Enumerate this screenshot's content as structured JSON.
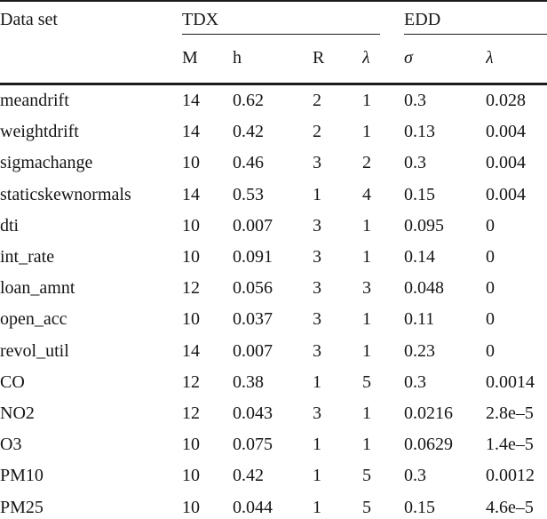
{
  "table": {
    "header": {
      "dataset_label": "Data set",
      "group_tdx": "TDX",
      "group_edd": "EDD",
      "sub_m": "M",
      "sub_h": "h",
      "sub_r": "R",
      "sub_lambda": "λ",
      "sub_sigma": "σ",
      "sub_lambda2": "λ"
    },
    "rows": [
      {
        "name": "meandrift",
        "m": "14",
        "h": "0.62",
        "r": "2",
        "lambda": "1",
        "sigma": "0.3",
        "lambda2": "0.028"
      },
      {
        "name": "weightdrift",
        "m": "14",
        "h": "0.42",
        "r": "2",
        "lambda": "1",
        "sigma": "0.13",
        "lambda2": "0.004"
      },
      {
        "name": "sigmachange",
        "m": "10",
        "h": "0.46",
        "r": "3",
        "lambda": "2",
        "sigma": "0.3",
        "lambda2": "0.004"
      },
      {
        "name": "staticskewnormals",
        "m": "14",
        "h": "0.53",
        "r": "1",
        "lambda": "4",
        "sigma": "0.15",
        "lambda2": "0.004"
      },
      {
        "name": "dti",
        "m": "10",
        "h": "0.007",
        "r": "3",
        "lambda": "1",
        "sigma": "0.095",
        "lambda2": "0"
      },
      {
        "name": "int_rate",
        "m": "10",
        "h": "0.091",
        "r": "3",
        "lambda": "1",
        "sigma": "0.14",
        "lambda2": "0"
      },
      {
        "name": "loan_amnt",
        "m": "12",
        "h": "0.056",
        "r": "3",
        "lambda": "3",
        "sigma": "0.048",
        "lambda2": "0"
      },
      {
        "name": "open_acc",
        "m": "10",
        "h": "0.037",
        "r": "3",
        "lambda": "1",
        "sigma": "0.11",
        "lambda2": "0"
      },
      {
        "name": "revol_util",
        "m": "14",
        "h": "0.007",
        "r": "3",
        "lambda": "1",
        "sigma": "0.23",
        "lambda2": "0"
      },
      {
        "name": "CO",
        "m": "12",
        "h": "0.38",
        "r": "1",
        "lambda": "5",
        "sigma": "0.3",
        "lambda2": "0.0014"
      },
      {
        "name": "NO2",
        "m": "12",
        "h": "0.043",
        "r": "3",
        "lambda": "1",
        "sigma": "0.0216",
        "lambda2": "2.8e–5"
      },
      {
        "name": "O3",
        "m": "10",
        "h": "0.075",
        "r": "1",
        "lambda": "1",
        "sigma": "0.0629",
        "lambda2": "1.4e–5"
      },
      {
        "name": "PM10",
        "m": "10",
        "h": "0.42",
        "r": "1",
        "lambda": "5",
        "sigma": "0.3",
        "lambda2": "0.0012"
      },
      {
        "name": "PM25",
        "m": "10",
        "h": "0.044",
        "r": "1",
        "lambda": "5",
        "sigma": "0.15",
        "lambda2": "4.6e–5"
      }
    ]
  }
}
